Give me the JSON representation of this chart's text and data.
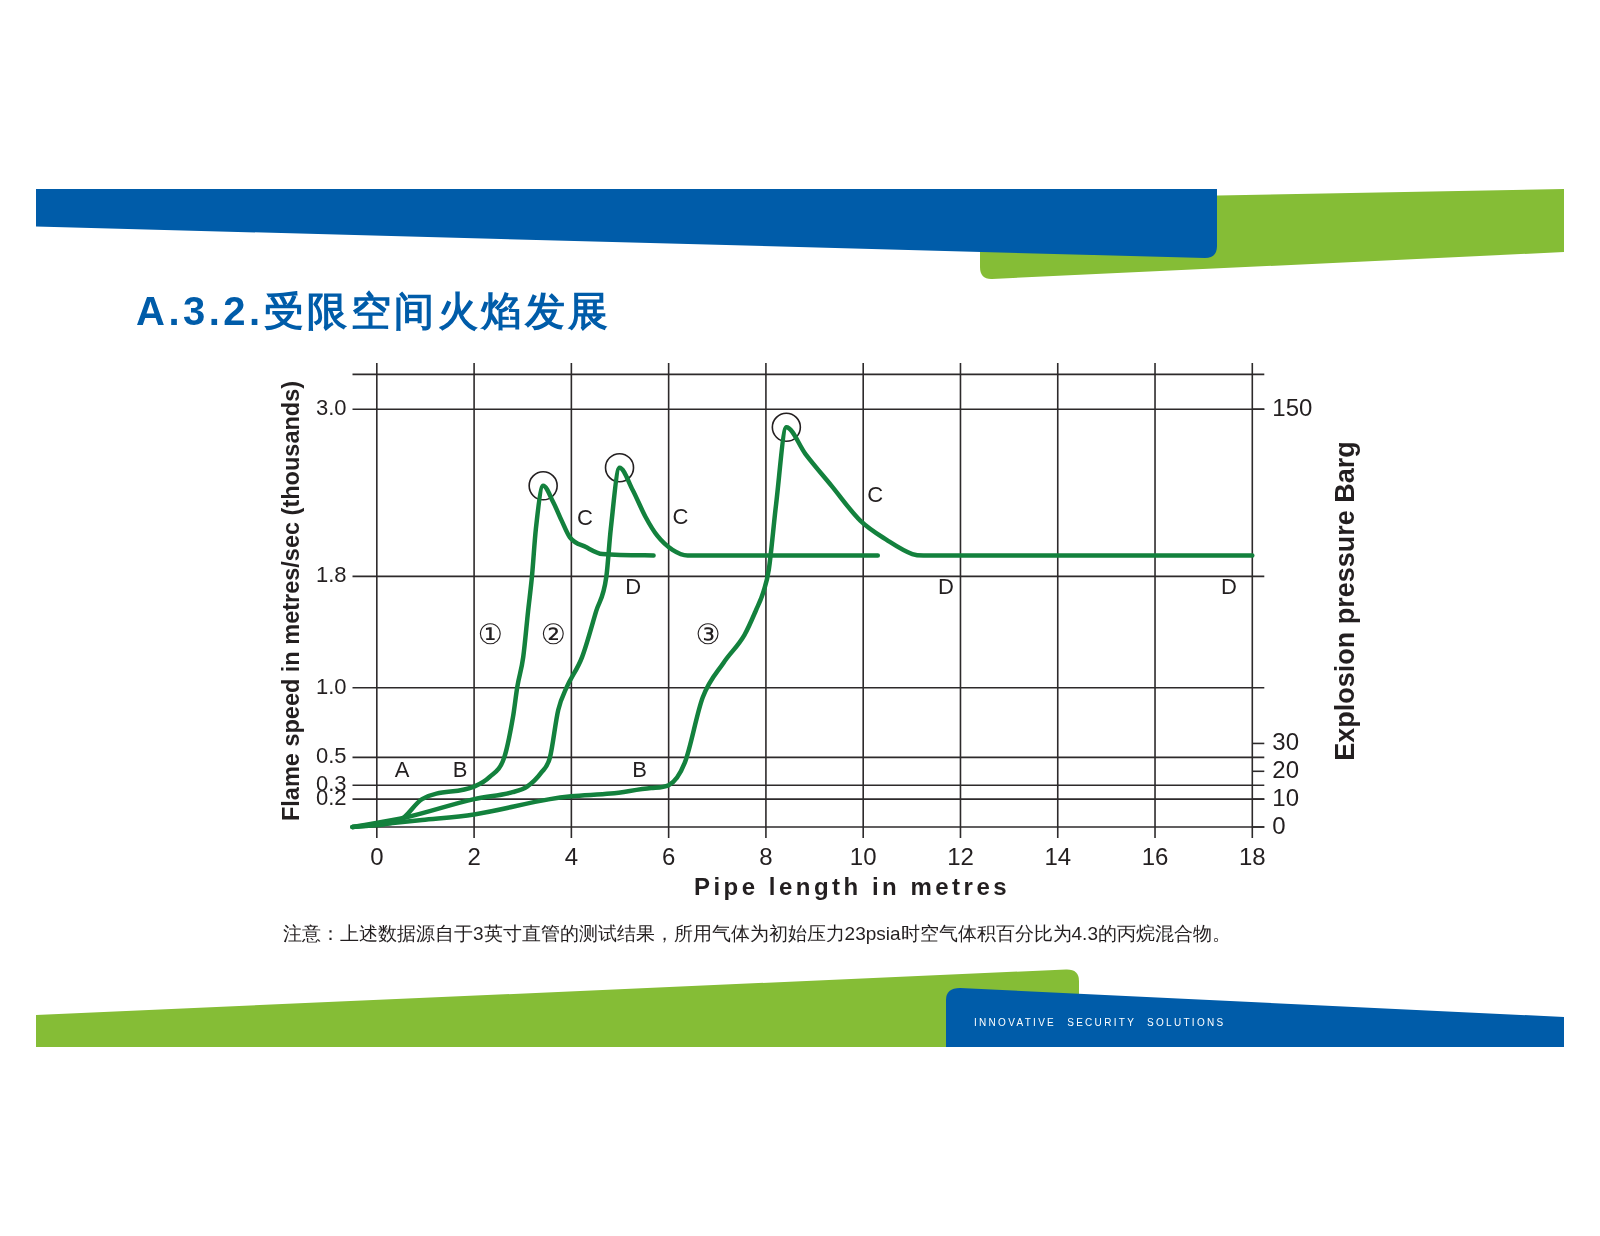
{
  "chart_data": {
    "type": "line",
    "title": "A.3.2.受限空间火焰发展",
    "xlabel": "Pipe length in metres",
    "ylabel": "Flame speed in metres/sec (thousands)",
    "y2label": "Explosion pressure Barg",
    "series": [
      {
        "name": "①",
        "color": "#13813d",
        "x": [
          -0.5,
          0.48,
          0.93,
          2,
          2.32,
          2.62,
          2.8,
          2.89,
          3.01,
          3.11,
          3.19,
          3.27,
          3.42,
          3.63,
          3.8,
          3.97,
          4.3,
          4.64,
          5.69
        ],
        "values": [
          0,
          0.05,
          0.2,
          0.29,
          0.36,
          0.5,
          0.79,
          1.01,
          1.22,
          1.55,
          1.8,
          2.14,
          2.45,
          2.33,
          2.2,
          2.08,
          2.01,
          1.96,
          1.95
        ]
      },
      {
        "name": "②",
        "color": "#13813d",
        "x": [
          -0.5,
          0.61,
          2,
          2.79,
          3.09,
          3.38,
          3.56,
          3.73,
          3.9,
          4.22,
          4.51,
          4.72,
          4.81,
          4.99,
          5.26,
          5.52,
          5.77,
          6.08,
          6.39,
          10.3
        ],
        "values": [
          0,
          0.07,
          0.2,
          0.25,
          0.29,
          0.39,
          0.5,
          0.84,
          1.0,
          1.22,
          1.55,
          1.8,
          2.14,
          2.58,
          2.42,
          2.23,
          2.09,
          1.99,
          1.95,
          1.95
        ]
      },
      {
        "name": "③",
        "color": "#13813d",
        "x": [
          -0.5,
          0.93,
          2,
          3.56,
          4,
          4.81,
          5.64,
          6,
          6.33,
          6.7,
          7.13,
          7.56,
          7.8,
          7.95,
          8.06,
          8.21,
          8.42,
          8.81,
          9.35,
          9.94,
          10.49,
          11.01,
          11.24,
          18
        ],
        "values": [
          0,
          0.05,
          0.09,
          0.2,
          0.22,
          0.24,
          0.28,
          0.3,
          0.46,
          0.93,
          1.18,
          1.38,
          1.56,
          1.69,
          1.85,
          2.32,
          2.87,
          2.68,
          2.45,
          2.2,
          2.06,
          1.96,
          1.95,
          1.95
        ]
      },
      {
        "type": "scatter",
        "marker": "circle",
        "color": "#231f20",
        "x": [
          3.42,
          4.99,
          8.42
        ],
        "values": [
          2.45,
          2.58,
          2.87
        ]
      }
    ],
    "xlim": [
      -0.5,
      18
    ],
    "xticks": [
      0,
      2,
      4,
      6,
      8,
      10,
      12,
      14,
      16,
      18
    ],
    "ylim": [
      0,
      3.25
    ],
    "yticks": [
      {
        "value": 0,
        "label": null
      },
      0.2,
      0.3,
      0.5,
      {
        "value": 1,
        "label": "1.0"
      },
      1.8,
      {
        "value": 3,
        "label": "3.0"
      },
      {
        "value": 3.25,
        "label": null
      }
    ],
    "y2lim": [
      0,
      162.5
    ],
    "y2ticks": [
      0,
      10,
      20,
      30,
      150
    ],
    "grid": true,
    "legend": false,
    "marker": "none",
    "annotations": [
      {
        "text": "A",
        "x": 0.48,
        "y": 0.05
      },
      {
        "text": "B",
        "x": 2,
        "y": 0.29
      },
      {
        "text": "B",
        "x": 6,
        "y": 0.3
      },
      {
        "text": "C",
        "x": 3.97,
        "y": 2.08
      },
      {
        "text": "C",
        "x": 5.77,
        "y": 2.09
      },
      {
        "text": "C",
        "x": 9.94,
        "y": 2.2
      },
      {
        "text": "D",
        "x": 5.27,
        "y": 1.95
      },
      {
        "text": "D",
        "x": 11.7,
        "y": 1.95
      },
      {
        "text": "D",
        "x": 17.52,
        "y": 1.95
      },
      "注意：上述数据源自于3英寸直管的测试结果，所用气体为初始压力23psia时空气体积百分比为4.3的丙烷混合物。",
      "INNOVATIVE SECURITY SOLUTIONS"
    ]
  }
}
